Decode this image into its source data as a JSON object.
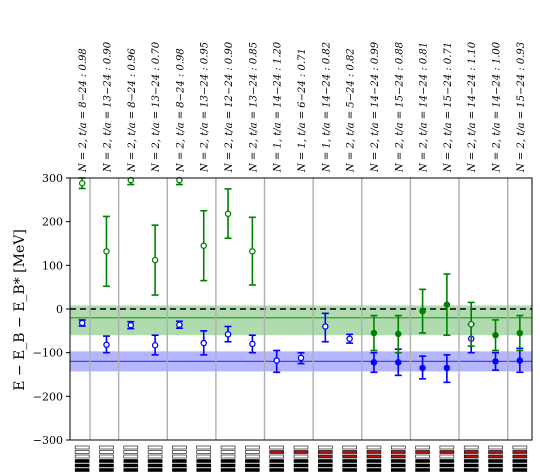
{
  "chart_data": {
    "type": "scatter",
    "ylabel": "E − E_B − E_B*  [MeV]",
    "ylim": [
      -300,
      300
    ],
    "yticks": [
      -300,
      -200,
      -100,
      0,
      100,
      200,
      300
    ],
    "column_labels": [
      "N = 2, t/a = 8−24 :  0.98",
      "N = 2, t/a = 13−24 : 0.90",
      "N = 2, t/a = 8−24 :  0.96",
      "N = 2, t/a = 13−24 : 0.70",
      "N = 2, t/a = 8−24 :  0.98",
      "N = 2, t/a = 13−24 : 0.95",
      "N = 2, t/a = 12−24 : 0.90",
      "N = 2, t/a = 13−24 : 0.85",
      "N = 1, t/a = 14−24 : 1.20",
      "N = 1, t/a = 6−24 :  0.71",
      "N = 1, t/a = 14−24 : 0.82",
      "N = 2, t/a = 5−24 :  0.82",
      "N = 2, t/a = 14−24 : 0.99",
      "N = 2, t/a = 15−24 : 0.88",
      "N = 2, t/a = 14−24 : 0.81",
      "N = 2, t/a = 15−24 : 0.71",
      "N = 2, t/a = 14−24 : 1.10",
      "N = 2, t/a = 14−24 : 1.00",
      "N = 2, t/a = 15−24 : 0.93"
    ],
    "groups": 10,
    "bands": [
      {
        "color": "#2ca02c",
        "center": -20,
        "low": -60,
        "high": 8
      },
      {
        "color": "#4040ff",
        "center": -120,
        "low": -143,
        "high": -97
      }
    ],
    "dashed_line_y": 0,
    "points": [
      {
        "x": 0,
        "y": -32,
        "lo": -39,
        "hi": -25,
        "color": "#0000ff",
        "filled": false
      },
      {
        "x": 0,
        "y": 288,
        "lo": 276,
        "hi": 300,
        "color": "#008000",
        "filled": false
      },
      {
        "x": 1,
        "y": -82,
        "lo": -100,
        "hi": -62,
        "color": "#0000ff",
        "filled": false
      },
      {
        "x": 1,
        "y": 132,
        "lo": 52,
        "hi": 212,
        "color": "#008000",
        "filled": false
      },
      {
        "x": 2,
        "y": -37,
        "lo": -45,
        "hi": -29,
        "color": "#0000ff",
        "filled": false
      },
      {
        "x": 2,
        "y": 295,
        "lo": 285,
        "hi": 305,
        "color": "#008000",
        "filled": false
      },
      {
        "x": 3,
        "y": -83,
        "lo": -105,
        "hi": -60,
        "color": "#0000ff",
        "filled": false
      },
      {
        "x": 3,
        "y": 112,
        "lo": 32,
        "hi": 192,
        "color": "#008000",
        "filled": false
      },
      {
        "x": 4,
        "y": -36,
        "lo": -44,
        "hi": -28,
        "color": "#0000ff",
        "filled": false
      },
      {
        "x": 4,
        "y": 295,
        "lo": 285,
        "hi": 305,
        "color": "#008000",
        "filled": false
      },
      {
        "x": 5,
        "y": -78,
        "lo": -105,
        "hi": -50,
        "color": "#0000ff",
        "filled": false
      },
      {
        "x": 5,
        "y": 145,
        "lo": 65,
        "hi": 225,
        "color": "#008000",
        "filled": false
      },
      {
        "x": 6,
        "y": -58,
        "lo": -75,
        "hi": -40,
        "color": "#0000ff",
        "filled": false
      },
      {
        "x": 6,
        "y": 218,
        "lo": 162,
        "hi": 275,
        "color": "#008000",
        "filled": false
      },
      {
        "x": 7,
        "y": -80,
        "lo": -100,
        "hi": -60,
        "color": "#0000ff",
        "filled": false
      },
      {
        "x": 7,
        "y": 132,
        "lo": 55,
        "hi": 210,
        "color": "#008000",
        "filled": false
      },
      {
        "x": 8,
        "y": -118,
        "lo": -145,
        "hi": -95,
        "color": "#0000ff",
        "filled": false
      },
      {
        "x": 9,
        "y": -112,
        "lo": -125,
        "hi": -100,
        "color": "#0000ff",
        "filled": false
      },
      {
        "x": 10,
        "y": -40,
        "lo": -75,
        "hi": -10,
        "color": "#0000ff",
        "filled": false
      },
      {
        "x": 11,
        "y": -68,
        "lo": -78,
        "hi": -58,
        "color": "#0000ff",
        "filled": false
      },
      {
        "x": 12,
        "y": -122,
        "lo": -145,
        "hi": -100,
        "color": "#0000ff",
        "filled": true
      },
      {
        "x": 12,
        "y": -55,
        "lo": -95,
        "hi": -15,
        "color": "#008000",
        "filled": true
      },
      {
        "x": 13,
        "y": -122,
        "lo": -152,
        "hi": -92,
        "color": "#0000ff",
        "filled": true
      },
      {
        "x": 13,
        "y": -57,
        "lo": -100,
        "hi": -15,
        "color": "#008000",
        "filled": true
      },
      {
        "x": 14,
        "y": -135,
        "lo": -160,
        "hi": -108,
        "color": "#0000ff",
        "filled": true
      },
      {
        "x": 14,
        "y": -5,
        "lo": -55,
        "hi": 45,
        "color": "#008000",
        "filled": true
      },
      {
        "x": 15,
        "y": -135,
        "lo": -168,
        "hi": -105,
        "color": "#0000ff",
        "filled": true
      },
      {
        "x": 15,
        "y": 10,
        "lo": -60,
        "hi": 80,
        "color": "#008000",
        "filled": true
      },
      {
        "x": 16,
        "y": -68,
        "lo": -100,
        "hi": -35,
        "color": "#0000ff",
        "filled": false
      },
      {
        "x": 16,
        "y": -35,
        "lo": -85,
        "hi": 15,
        "color": "#008000",
        "filled": false
      },
      {
        "x": 17,
        "y": -120,
        "lo": -140,
        "hi": -100,
        "color": "#0000ff",
        "filled": true
      },
      {
        "x": 17,
        "y": -60,
        "lo": -95,
        "hi": -25,
        "color": "#008000",
        "filled": true
      },
      {
        "x": 18,
        "y": -118,
        "lo": -145,
        "hi": -90,
        "color": "#0000ff",
        "filled": true
      },
      {
        "x": 18,
        "y": -55,
        "lo": -95,
        "hi": -15,
        "color": "#008000",
        "filled": true
      }
    ],
    "bottom_icons": [
      {
        "red_rows": 0
      },
      {
        "red_rows": 0
      },
      {
        "red_rows": 0
      },
      {
        "red_rows": 0
      },
      {
        "red_rows": 0
      },
      {
        "red_rows": 0
      },
      {
        "red_rows": 0
      },
      {
        "red_rows": 0
      },
      {
        "red_rows": 1
      },
      {
        "red_rows": 1
      },
      {
        "red_rows": 2
      },
      {
        "red_rows": 2
      },
      {
        "red_rows": 2
      },
      {
        "red_rows": 2
      },
      {
        "red_rows": 1
      },
      {
        "red_rows": 1
      },
      {
        "red_rows": 2
      },
      {
        "red_rows": 2
      },
      {
        "red_rows": 2
      }
    ]
  }
}
